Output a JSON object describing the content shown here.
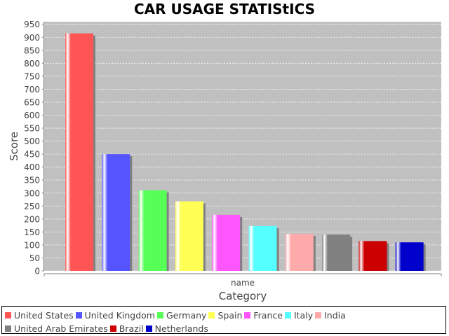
{
  "chart_data": {
    "type": "bar",
    "title": "CAR USAGE STATIStICS",
    "xlabel": "Category",
    "ylabel": "Score",
    "categories": [
      "name"
    ],
    "ylim": [
      0,
      960
    ],
    "yticks": [
      0,
      50,
      100,
      150,
      200,
      250,
      300,
      350,
      400,
      450,
      500,
      550,
      600,
      650,
      700,
      750,
      800,
      850,
      900,
      950
    ],
    "grid": true,
    "legend_position": "bottom",
    "series": [
      {
        "name": "United States",
        "values": [
          915
        ],
        "color": "#ff5555"
      },
      {
        "name": "United Kingdom",
        "values": [
          450
        ],
        "color": "#5555ff"
      },
      {
        "name": "Germany",
        "values": [
          310
        ],
        "color": "#55ff55"
      },
      {
        "name": "Spain",
        "values": [
          268
        ],
        "color": "#ffff55"
      },
      {
        "name": "France",
        "values": [
          216
        ],
        "color": "#ff55ff"
      },
      {
        "name": "Italy",
        "values": [
          173
        ],
        "color": "#55ffff"
      },
      {
        "name": "India",
        "values": [
          143
        ],
        "color": "#ffaaaa"
      },
      {
        "name": "United Arab Emirates",
        "values": [
          140
        ],
        "color": "#808080"
      },
      {
        "name": "Brazil",
        "values": [
          115
        ],
        "color": "#cc0000"
      },
      {
        "name": "Netherlands",
        "values": [
          110
        ],
        "color": "#0000cc"
      }
    ]
  }
}
